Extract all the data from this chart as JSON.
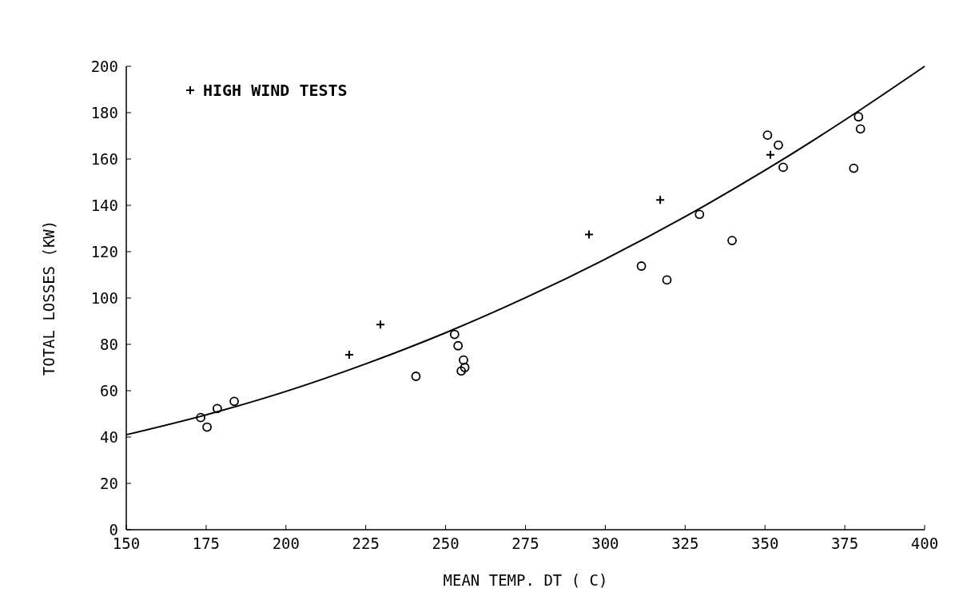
{
  "chart_data": {
    "type": "scatter",
    "xlabel": "MEAN TEMP. DT ( C)",
    "ylabel": "TOTAL LOSSES (KW)",
    "xlim": [
      150,
      400
    ],
    "ylim": [
      0,
      200
    ],
    "xticks": [
      150,
      175,
      200,
      225,
      250,
      275,
      300,
      325,
      350,
      375,
      400
    ],
    "yticks": [
      0,
      20,
      40,
      60,
      80,
      100,
      120,
      140,
      160,
      180,
      200
    ],
    "grid": false,
    "legend": "top left",
    "series": [
      {
        "color": "#000000",
        "marker": "circle",
        "x": [
          173.3,
          175.3,
          178.5,
          183.8,
          240.7,
          252.8,
          253.9,
          255.6,
          254.9,
          256,
          311.3,
          319.3,
          329.5,
          339.7,
          350.8,
          354.2,
          355.7,
          377.8,
          379.3,
          379.9
        ],
        "values": [
          48.4,
          44.3,
          52.3,
          55.4,
          66.2,
          84.3,
          79.4,
          73.2,
          68.5,
          70,
          113.8,
          107.8,
          136.1,
          124.8,
          170.3,
          166,
          156.4,
          156,
          178.2,
          173
        ]
      },
      {
        "name": "HIGH WIND TESTS",
        "color": "#000000",
        "marker": "cross",
        "x": [
          219.8,
          229.6,
          294.9,
          317.2,
          351.7
        ],
        "values": [
          75.5,
          88.5,
          127.4,
          142.3,
          161.8
        ]
      },
      {
        "type": "line",
        "color": "#000000",
        "marker": "none",
        "x": [
          150,
          175,
          200,
          225,
          250,
          275,
          300,
          325,
          350,
          375,
          400
        ],
        "values": [
          41,
          49.6,
          59.7,
          71.6,
          85,
          100.1,
          116.8,
          135.1,
          155.1,
          176.8,
          200
        ]
      }
    ]
  }
}
